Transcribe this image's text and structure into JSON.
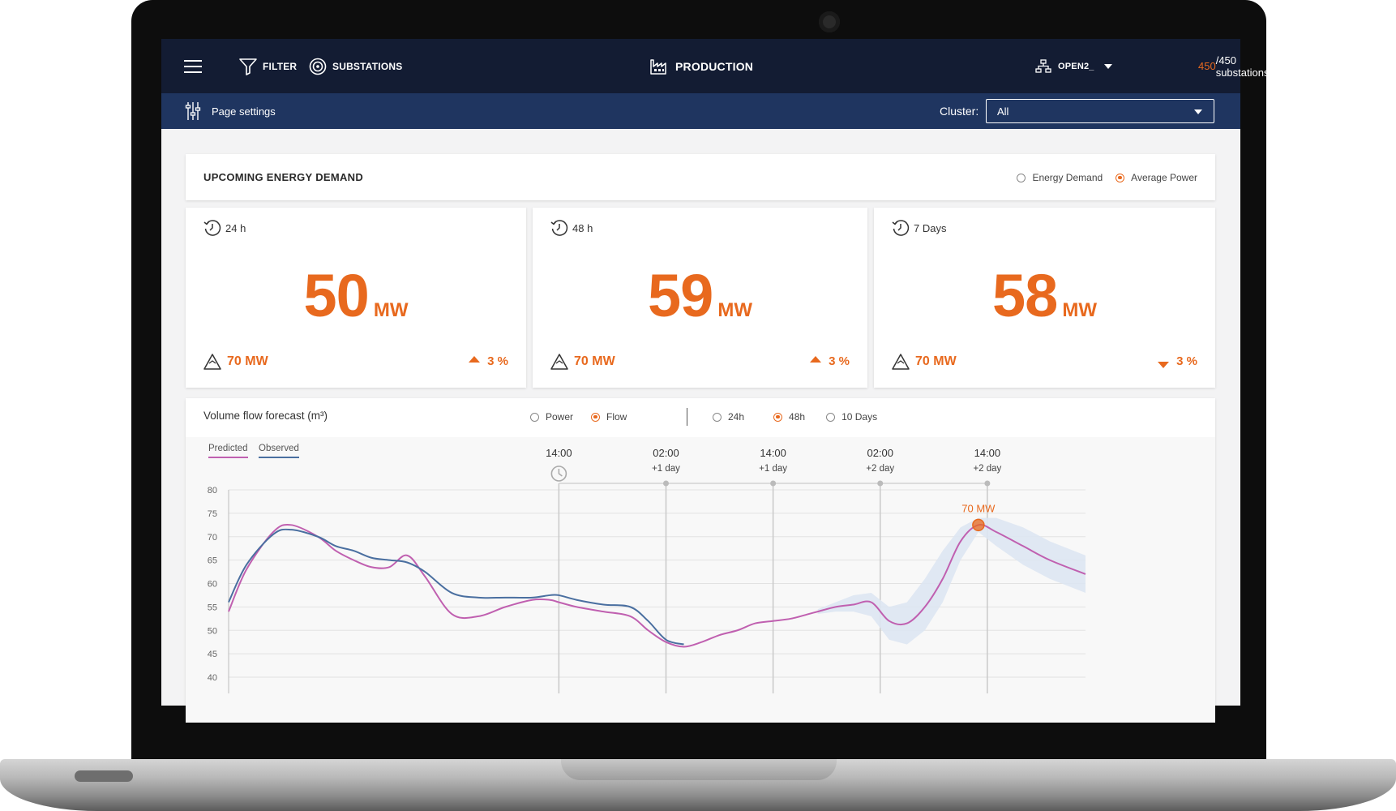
{
  "nav": {
    "filter_label": "FILTER",
    "substations_label": "SUBSTATIONS",
    "title": "PRODUCTION",
    "network_label": "OPEN2_",
    "substations_active": "450",
    "substations_total": "/450 substations"
  },
  "subbar": {
    "page_settings_label": "Page settings",
    "cluster_label": "Cluster:",
    "cluster_value": "All"
  },
  "demand": {
    "title": "UPCOMING ENERGY DEMAND",
    "options": [
      {
        "label": "Energy Demand",
        "selected": false
      },
      {
        "label": "Average Power",
        "selected": true
      }
    ],
    "cards": [
      {
        "period": "24 h",
        "value": "50",
        "unit": "MW",
        "peak": "70 MW",
        "change": "3 %",
        "direction": "up"
      },
      {
        "period": "48 h",
        "value": "59",
        "unit": "MW",
        "peak": "70 MW",
        "change": "3 %",
        "direction": "up"
      },
      {
        "period": "7 Days",
        "value": "58",
        "unit": "MW",
        "peak": "70 MW",
        "change": "3 %",
        "direction": "down"
      }
    ]
  },
  "forecast": {
    "title": "Volume flow forecast (m³)",
    "mode_options": [
      {
        "label": "Power",
        "selected": false
      },
      {
        "label": "Flow",
        "selected": true
      }
    ],
    "range_options": [
      {
        "label": "24h",
        "selected": false
      },
      {
        "label": "48h",
        "selected": true
      },
      {
        "label": "10 Days",
        "selected": false
      }
    ],
    "legend": {
      "predicted": "Predicted",
      "observed": "Observed"
    },
    "colors": {
      "predicted": "#c060b0",
      "observed": "#4a6fa0",
      "accent": "#e8691e",
      "band": "#dde6f2"
    }
  },
  "chart_data": {
    "type": "line",
    "title": "Volume flow forecast (m³)",
    "y_ticks": [
      40,
      45,
      50,
      55,
      60,
      65,
      70,
      75,
      80
    ],
    "ylim": [
      40,
      80
    ],
    "time_markers": [
      {
        "time": "14:00",
        "day": ""
      },
      {
        "time": "02:00",
        "day": "+1 day"
      },
      {
        "time": "14:00",
        "day": "+1 day"
      },
      {
        "time": "02:00",
        "day": "+2 day"
      },
      {
        "time": "14:00",
        "day": "+2 day"
      }
    ],
    "now_marker_index": 0,
    "peak_annotation": {
      "label": "70 MW",
      "x": 47,
      "y": 72.5
    },
    "x_range": [
      -37,
      59
    ],
    "series": [
      {
        "name": "Predicted",
        "x": [
          -37,
          -35,
          -32,
          -30,
          -27,
          -25,
          -23,
          -21,
          -19,
          -17,
          -15,
          -12,
          -9,
          -6,
          -3,
          -1,
          0,
          2,
          5,
          8,
          10,
          12,
          14,
          16,
          18,
          20,
          22,
          24,
          26,
          28,
          29,
          31,
          33,
          35,
          37,
          39,
          41,
          43,
          45,
          47,
          49,
          52,
          55,
          59
        ],
        "y": [
          54,
          63,
          71,
          72.5,
          70,
          67,
          65,
          63.5,
          63.5,
          66,
          61.5,
          53.5,
          53,
          55,
          56.5,
          56.5,
          56,
          55,
          54,
          53,
          50,
          47.5,
          46.5,
          47.5,
          49,
          50,
          51.5,
          52,
          52.5,
          53.5,
          54,
          55,
          55.5,
          56,
          52,
          51.5,
          55,
          61,
          69,
          72.5,
          71,
          68,
          65,
          62
        ]
      },
      {
        "name": "Observed",
        "x": [
          -37,
          -35,
          -32,
          -30,
          -27,
          -25,
          -23,
          -21,
          -19,
          -17,
          -15,
          -12,
          -9,
          -6,
          -3,
          -1,
          0,
          2,
          5,
          8,
          10,
          12,
          14
        ],
        "y": [
          56,
          64,
          70.5,
          71.5,
          70,
          68,
          67,
          65.5,
          65,
          64.5,
          62.5,
          58,
          57,
          57,
          57,
          57.5,
          57.5,
          56.5,
          55.5,
          55,
          52,
          48,
          47
        ]
      }
    ],
    "confidence_band": {
      "x": [
        29,
        31,
        33,
        35,
        37,
        39,
        41,
        43,
        45,
        47,
        49,
        52,
        55,
        59
      ],
      "upper": [
        54.5,
        56,
        57.5,
        58,
        55,
        56,
        61,
        67,
        72,
        74,
        74,
        72,
        69,
        66
      ],
      "lower": [
        53.5,
        54,
        54,
        53,
        48,
        47,
        50,
        56,
        65,
        71,
        68,
        64,
        61,
        58
      ]
    }
  }
}
